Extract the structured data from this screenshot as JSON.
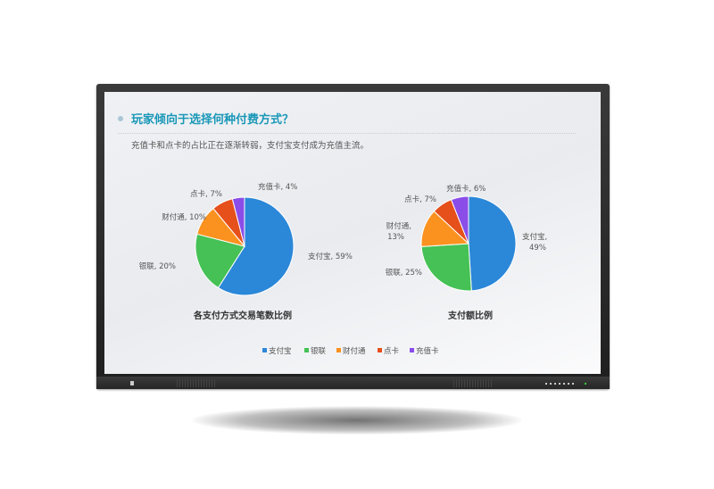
{
  "slide": {
    "title": "玩家倾向于选择何种付费方式？",
    "subtitle": "充值卡和点卡的占比正在逐渐转弱，支付宝支付成为充值主流。"
  },
  "colors": {
    "支付宝": "#2b87d8",
    "银联": "#45c155",
    "财付通": "#fb921f",
    "点卡": "#e5501b",
    "充值卡": "#8a4de8"
  },
  "chart_data": [
    {
      "type": "pie",
      "title": "各支付方式交易笔数比例",
      "categories": [
        "支付宝",
        "银联",
        "财付通",
        "点卡",
        "充值卡"
      ],
      "values": [
        59,
        20,
        10,
        7,
        4
      ],
      "labels": [
        "支付宝, 59%",
        "银联, 20%",
        "财付通, 10%",
        "点卡, 7%",
        "充值卡, 4%"
      ]
    },
    {
      "type": "pie",
      "title": "支付额比例",
      "categories": [
        "支付宝",
        "银联",
        "财付通",
        "点卡",
        "充值卡"
      ],
      "values": [
        49,
        25,
        13,
        7,
        6
      ],
      "labels": [
        "支付宝, 49%",
        "银联, 25%",
        "财付通, 13%",
        "点卡, 7%",
        "充值卡, 6%"
      ]
    }
  ],
  "legend": {
    "placement": "bottom",
    "items": [
      "支付宝",
      "银联",
      "财付通",
      "点卡",
      "充值卡"
    ]
  }
}
